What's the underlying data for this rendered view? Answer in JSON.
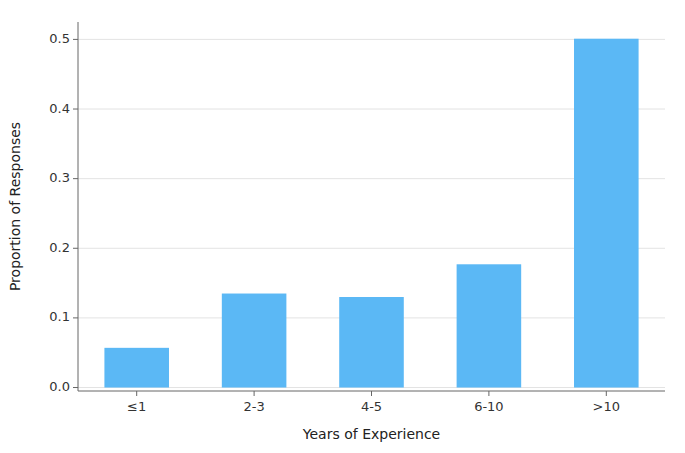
{
  "chart_data": {
    "type": "bar",
    "categories": [
      "≤1",
      "2-3",
      "4-5",
      "6-10",
      ">10"
    ],
    "values": [
      0.057,
      0.135,
      0.13,
      0.177,
      0.501
    ],
    "color": "#5BB8F5",
    "xlabel": "Years of Experience",
    "ylabel": "Proportion of Responses",
    "ylim": [
      -0.005,
      0.525
    ],
    "yticks": [
      {
        "value": 0.0,
        "label": "0.0"
      },
      0.1,
      0.2,
      0.3,
      0.4,
      0.5
    ],
    "grid": true
  }
}
